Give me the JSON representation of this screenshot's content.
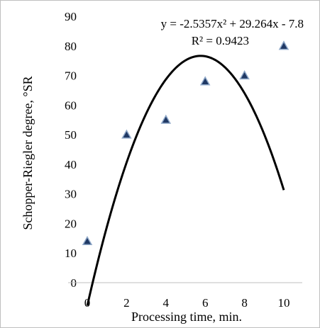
{
  "chart_data": {
    "type": "scatter",
    "xlabel": "Processing time, min.",
    "ylabel": "Schopper-Riegler degree, °SR",
    "xlim": [
      -1,
      11
    ],
    "ylim": [
      0,
      90
    ],
    "x_ticks": [
      "0",
      "2",
      "4",
      "6",
      "8",
      "10"
    ],
    "y_ticks": [
      "0",
      "10",
      "20",
      "30",
      "40",
      "50",
      "60",
      "70",
      "80",
      "90"
    ],
    "points": [
      {
        "x": 0,
        "y": 14
      },
      {
        "x": 2,
        "y": 50
      },
      {
        "x": 4,
        "y": 55
      },
      {
        "x": 6,
        "y": 68
      },
      {
        "x": 8,
        "y": 70
      },
      {
        "x": 10,
        "y": 80
      }
    ],
    "trendline": {
      "type": "polynomial",
      "a": -2.5357,
      "b": 29.264,
      "c": -7.8,
      "equation_label": "y = -2.5357x² + 29.264x - 7.8",
      "r2_label": "R² = 0.9423"
    },
    "grid": false,
    "marker": "triangle",
    "colors": {
      "marker_fill": "#1f3864",
      "marker_stroke": "#8fa8c8",
      "trendline": "#000000",
      "axis": "#bfbfbf"
    }
  }
}
